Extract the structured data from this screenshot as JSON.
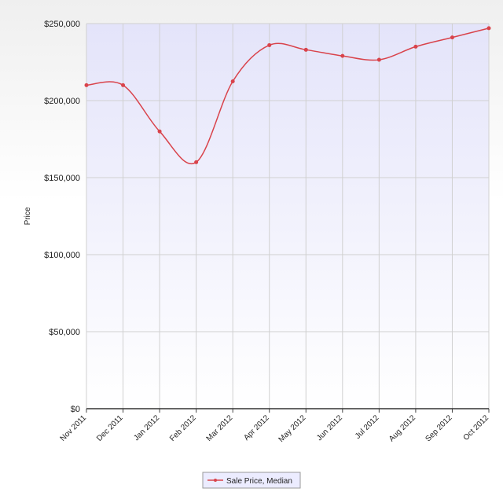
{
  "chart_data": {
    "type": "line",
    "y_label": "Price",
    "categories": [
      "Nov 2011",
      "Dec 2011",
      "Jan 2012",
      "Feb 2012",
      "Mar 2012",
      "Apr 2012",
      "May 2012",
      "Jun 2012",
      "Jul 2012",
      "Aug 2012",
      "Sep 2012",
      "Oct 2012"
    ],
    "series": [
      {
        "name": "Sale Price, Median",
        "color": "#d9434b",
        "values": [
          210000,
          210000,
          180000,
          160000,
          212500,
          236000,
          233000,
          229000,
          226500,
          235000,
          241000,
          247000
        ]
      }
    ],
    "ylim": [
      0,
      250000
    ],
    "yticks": [
      {
        "value": 0,
        "label": "$0"
      },
      {
        "value": 50000,
        "label": "$50,000"
      },
      {
        "value": 100000,
        "label": "$100,000"
      },
      {
        "value": 150000,
        "label": "$150,000"
      },
      {
        "value": 200000,
        "label": "$200,000"
      },
      {
        "value": 250000,
        "label": "$250,000"
      }
    ],
    "grid": true,
    "smooth": true,
    "legend": "bottom"
  }
}
